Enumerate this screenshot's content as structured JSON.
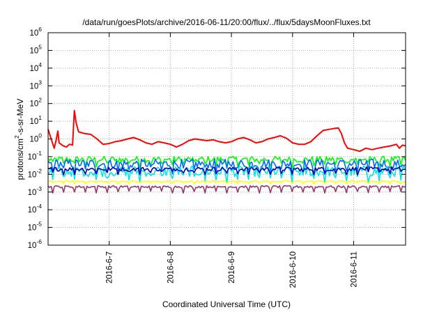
{
  "chart_data": {
    "type": "line",
    "title": "/data/run/goesPlots/archive/2016-06-11/20:00/flux/../flux/5daysMoonFluxes.txt",
    "xlabel": "Coordinated Universal Time (UTC)",
    "ylabel_parts": [
      "protons/cm",
      "2",
      "-s-sr-MeV"
    ],
    "x_range_days": [
      6.0,
      11.85
    ],
    "x_ticks": [
      {
        "label": "2016-6-7",
        "day": 7
      },
      {
        "label": "2016-6-8",
        "day": 8
      },
      {
        "label": "2016-6-9",
        "day": 9
      },
      {
        "label": "2016-6-10",
        "day": 10
      },
      {
        "label": "2016-6-11",
        "day": 11
      }
    ],
    "y_scale": "log",
    "y_exp_range": [
      -6,
      6
    ],
    "y_ticks": [
      {
        "base": "10",
        "exp": "-6"
      },
      {
        "base": "10",
        "exp": "-5"
      },
      {
        "base": "10",
        "exp": "-4"
      },
      {
        "base": "10",
        "exp": "-3"
      },
      {
        "base": "10",
        "exp": "-2"
      },
      {
        "base": "10",
        "exp": "-1"
      },
      {
        "base": "10",
        "exp": "0"
      },
      {
        "base": "10",
        "exp": "1"
      },
      {
        "base": "10",
        "exp": "2"
      },
      {
        "base": "10",
        "exp": "3"
      },
      {
        "base": "10",
        "exp": "4"
      },
      {
        "base": "10",
        "exp": "5"
      },
      {
        "base": "10",
        "exp": "6"
      }
    ],
    "grid": true,
    "series": [
      {
        "color": "#ff0000",
        "values": [
          [
            6.0,
            3.5
          ],
          [
            6.05,
            1.0
          ],
          [
            6.1,
            0.3
          ],
          [
            6.13,
            0.8
          ],
          [
            6.16,
            2.8
          ],
          [
            6.18,
            0.6
          ],
          [
            6.25,
            0.4
          ],
          [
            6.3,
            0.35
          ],
          [
            6.35,
            0.5
          ],
          [
            6.4,
            0.45
          ],
          [
            6.43,
            40
          ],
          [
            6.46,
            8
          ],
          [
            6.5,
            2.5
          ],
          [
            6.6,
            2.0
          ],
          [
            6.7,
            1.8
          ],
          [
            6.8,
            1.0
          ],
          [
            6.9,
            0.5
          ],
          [
            7.0,
            0.55
          ],
          [
            7.1,
            0.7
          ],
          [
            7.2,
            0.8
          ],
          [
            7.3,
            1.0
          ],
          [
            7.4,
            1.2
          ],
          [
            7.5,
            0.9
          ],
          [
            7.6,
            0.6
          ],
          [
            7.7,
            0.5
          ],
          [
            7.8,
            0.7
          ],
          [
            7.9,
            0.6
          ],
          [
            8.0,
            0.5
          ],
          [
            8.1,
            0.35
          ],
          [
            8.2,
            0.5
          ],
          [
            8.3,
            0.8
          ],
          [
            8.4,
            1.0
          ],
          [
            8.5,
            0.9
          ],
          [
            8.6,
            0.8
          ],
          [
            8.7,
            0.9
          ],
          [
            8.8,
            0.7
          ],
          [
            8.9,
            0.6
          ],
          [
            9.0,
            0.7
          ],
          [
            9.1,
            1.0
          ],
          [
            9.2,
            1.2
          ],
          [
            9.3,
            0.9
          ],
          [
            9.4,
            0.6
          ],
          [
            9.5,
            0.7
          ],
          [
            9.6,
            1.0
          ],
          [
            9.7,
            1.2
          ],
          [
            9.8,
            1.5
          ],
          [
            9.9,
            1.1
          ],
          [
            10.0,
            0.6
          ],
          [
            10.1,
            0.5
          ],
          [
            10.2,
            0.5
          ],
          [
            10.3,
            0.7
          ],
          [
            10.4,
            1.5
          ],
          [
            10.5,
            3.0
          ],
          [
            10.6,
            3.5
          ],
          [
            10.7,
            4.0
          ],
          [
            10.75,
            4.2
          ],
          [
            10.8,
            2.0
          ],
          [
            10.85,
            0.6
          ],
          [
            10.9,
            0.3
          ],
          [
            11.0,
            0.25
          ],
          [
            11.1,
            0.2
          ],
          [
            11.2,
            0.3
          ],
          [
            11.3,
            0.25
          ],
          [
            11.4,
            0.3
          ],
          [
            11.5,
            0.35
          ],
          [
            11.6,
            0.4
          ],
          [
            11.7,
            0.5
          ],
          [
            11.75,
            0.3
          ],
          [
            11.8,
            0.45
          ],
          [
            11.85,
            0.4
          ]
        ]
      },
      {
        "color": "#00ff00",
        "mean": 0.07,
        "amp": 1.5,
        "dip": 0.5
      },
      {
        "color": "#0066ff",
        "mean": 0.04,
        "amp": 1.8,
        "dip": 0.4
      },
      {
        "color": "#00e5e5",
        "mean": 0.015,
        "amp": 2.0,
        "dip": 0.35
      },
      {
        "color": "#0000aa",
        "mean": 0.02,
        "amp": 1.3,
        "dip": 0.6
      },
      {
        "color": "#ffff00",
        "mean": 0.004,
        "amp": 1.1,
        "dip": 0.8
      },
      {
        "color": "#993366",
        "mean": 0.002,
        "amp": 1.15,
        "dip": 0.5
      }
    ]
  }
}
